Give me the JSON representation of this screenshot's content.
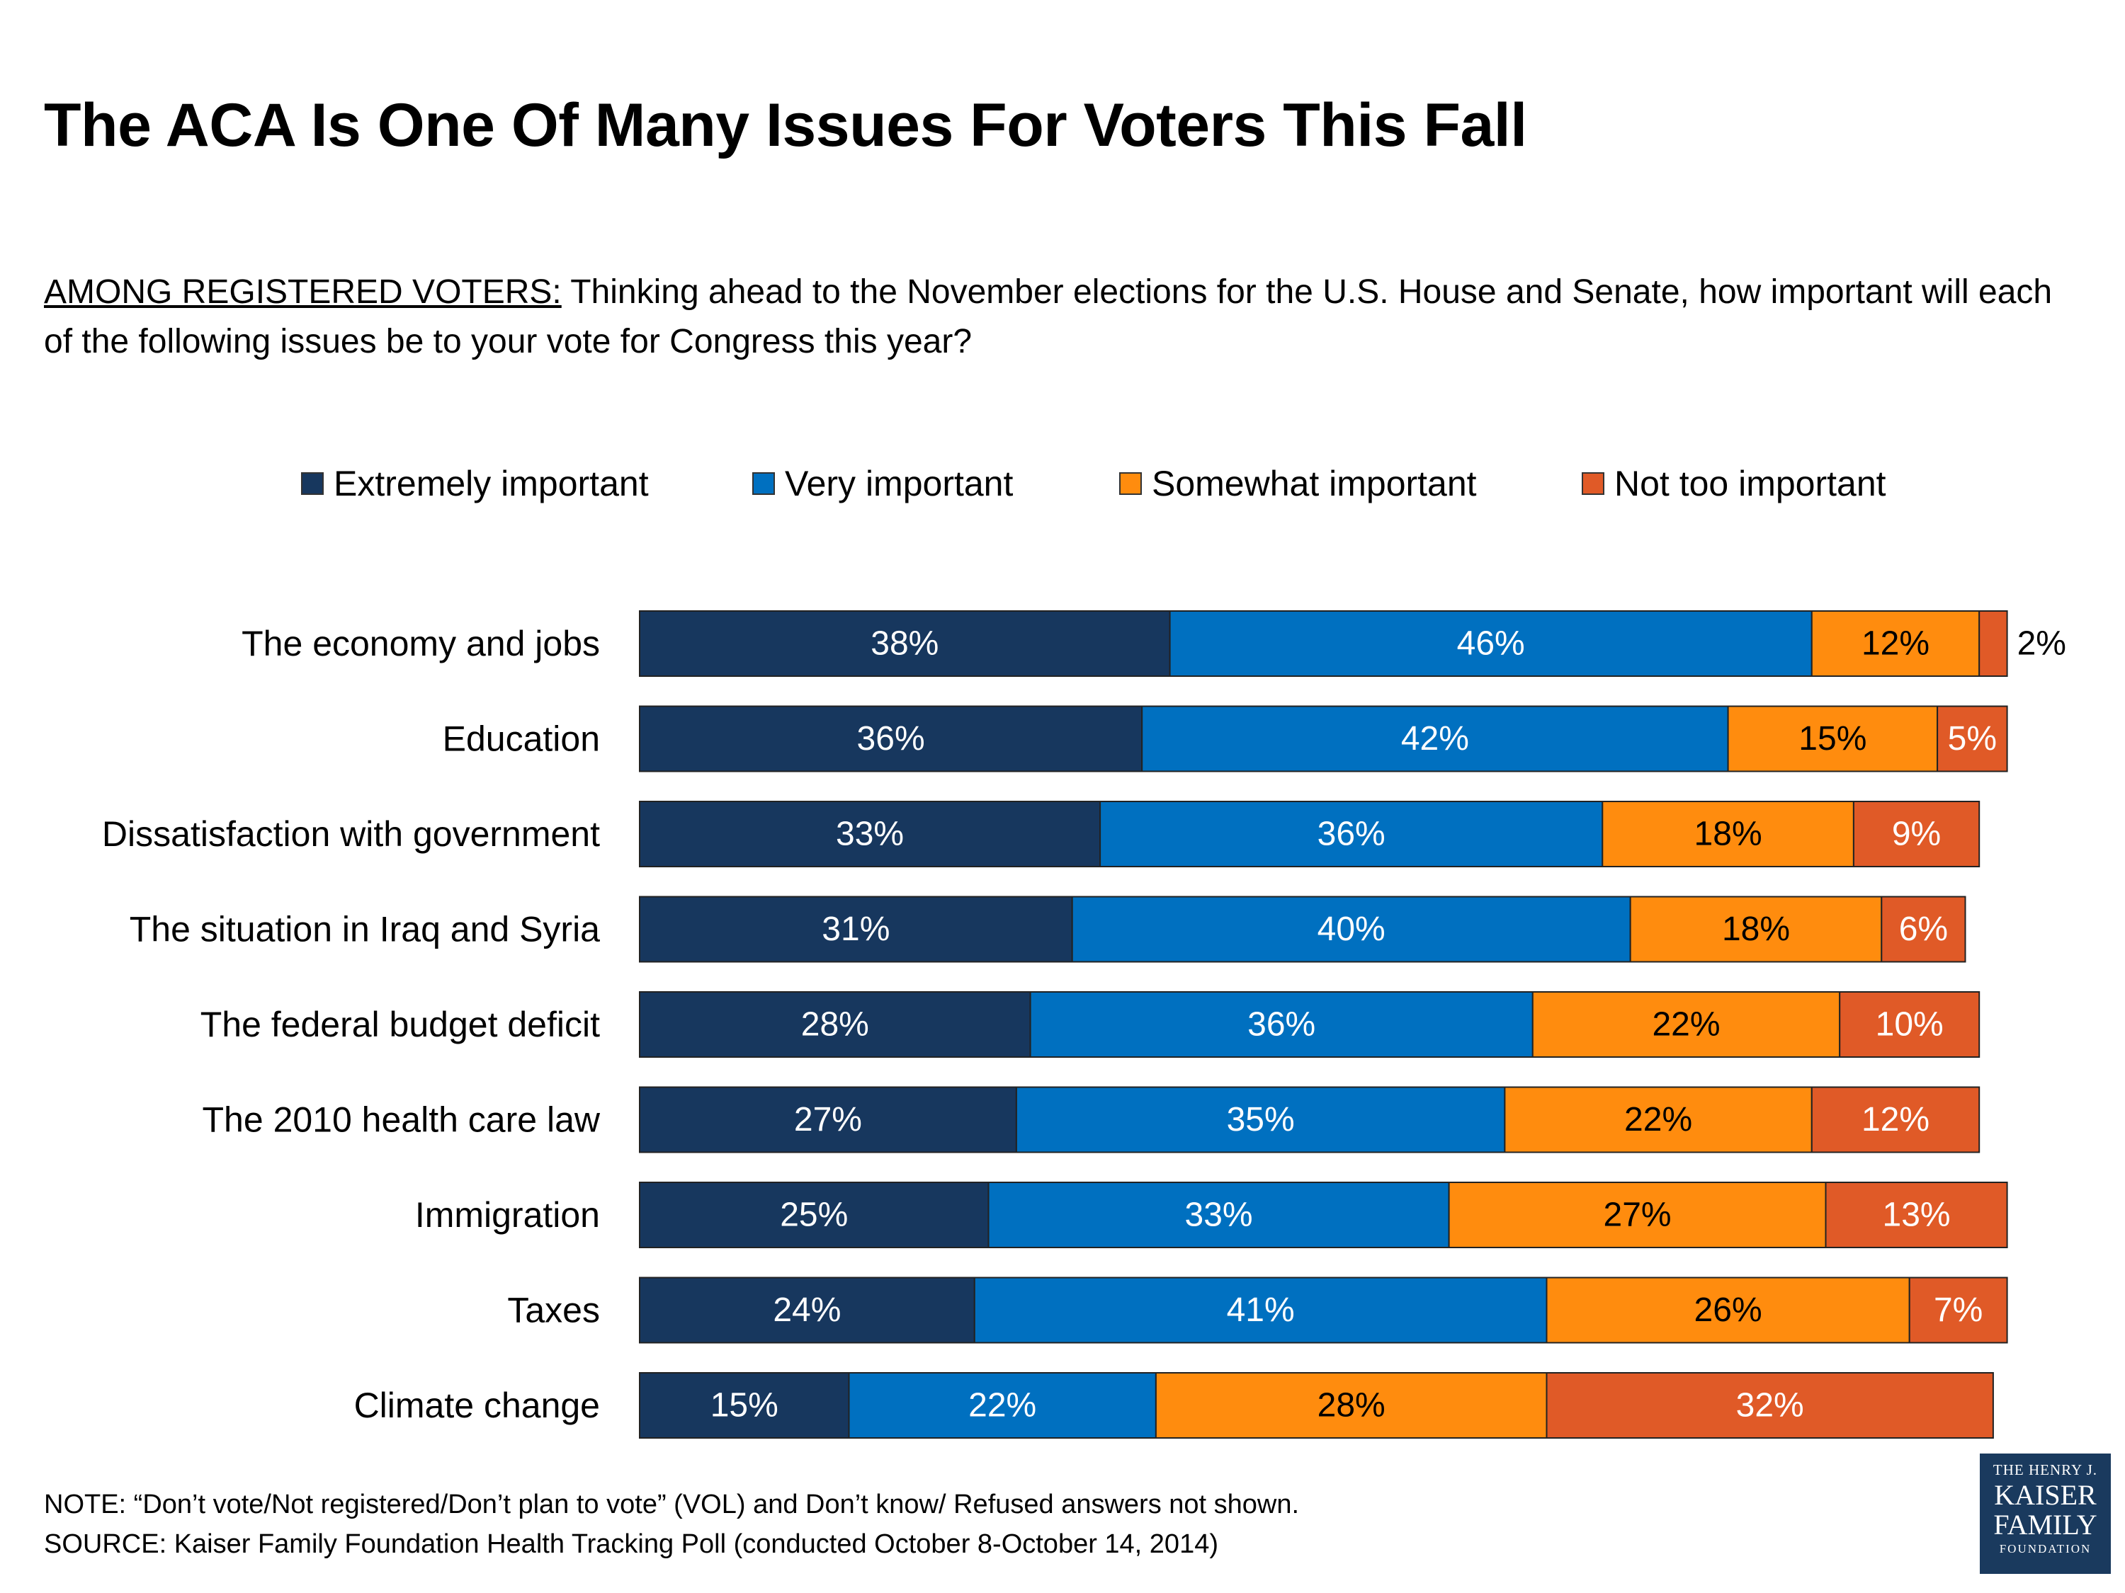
{
  "title": "The ACA Is One Of Many Issues For Voters This Fall",
  "subtitle": {
    "lead": "AMONG REGISTERED VOTERS:",
    "text": " Thinking ahead to the November elections for the U.S. House and Senate, how important will each of the following issues be to your vote for Congress this year?"
  },
  "chart_data": {
    "type": "bar",
    "orientation": "horizontal",
    "stacked": true,
    "value_suffix": "%",
    "legend_position": "top",
    "categories": [
      "The economy and jobs",
      "Education",
      "Dissatisfaction with government",
      "The situation in Iraq and Syria",
      "The federal budget deficit",
      "The 2010 health care law",
      "Immigration",
      "Taxes",
      "Climate change"
    ],
    "series": [
      {
        "name": "Extremely important",
        "color": "#17375e",
        "label_color": "#ffffff",
        "values": [
          38,
          36,
          33,
          31,
          28,
          27,
          25,
          24,
          15
        ]
      },
      {
        "name": "Very important",
        "color": "#0070c0",
        "label_color": "#ffffff",
        "values": [
          46,
          42,
          36,
          40,
          36,
          35,
          33,
          41,
          22
        ]
      },
      {
        "name": "Somewhat important",
        "color": "#ff8c0e",
        "label_color": "#000000",
        "values": [
          12,
          15,
          18,
          18,
          22,
          22,
          27,
          26,
          28
        ]
      },
      {
        "name": "Not too important",
        "color": "#e05a27",
        "label_color": "#ffffff",
        "values": [
          2,
          5,
          9,
          6,
          10,
          12,
          13,
          7,
          32
        ]
      }
    ]
  },
  "note": "NOTE: “Don’t vote/Not registered/Don’t plan to vote” (VOL) and Don’t know/ Refused answers not shown.",
  "source": "SOURCE: Kaiser Family Foundation Health Tracking Poll (conducted October 8-October 14, 2014)",
  "logo": {
    "line1": "THE HENRY J.",
    "line2": "KAISER",
    "line3": "FAMILY",
    "line4": "FOUNDATION"
  }
}
